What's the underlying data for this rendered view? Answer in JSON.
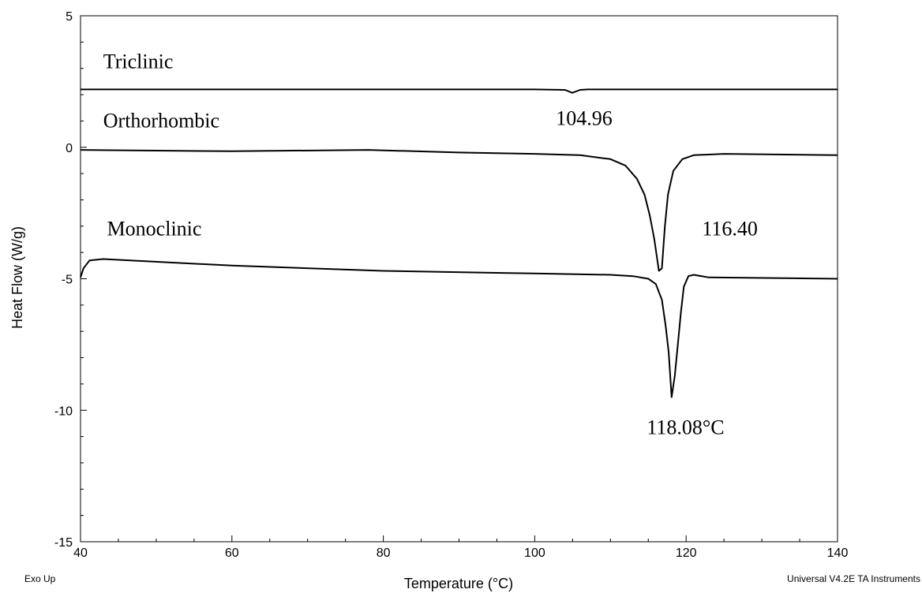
{
  "chart_data": {
    "type": "line",
    "xlabel": "Temperature (°C)",
    "ylabel": "Heat Flow (W/g)",
    "xlim": [
      40,
      140
    ],
    "ylim": [
      -15,
      5
    ],
    "x_ticks": [
      40,
      60,
      80,
      100,
      120,
      140
    ],
    "y_ticks": [
      5,
      0,
      -5,
      -10,
      -15
    ],
    "grid": false,
    "series": [
      {
        "name": "Triclinic",
        "color": "#000000",
        "points": [
          [
            40,
            2.2
          ],
          [
            80,
            2.2
          ],
          [
            100,
            2.2
          ],
          [
            104.0,
            2.18
          ],
          [
            104.96,
            2.07
          ],
          [
            106.0,
            2.18
          ],
          [
            107,
            2.2
          ],
          [
            120,
            2.2
          ],
          [
            140,
            2.2
          ]
        ]
      },
      {
        "name": "Orthorhombic",
        "color": "#000000",
        "points": [
          [
            40,
            -0.1
          ],
          [
            60,
            -0.15
          ],
          [
            78,
            -0.1
          ],
          [
            90,
            -0.2
          ],
          [
            100,
            -0.25
          ],
          [
            106,
            -0.3
          ],
          [
            110,
            -0.45
          ],
          [
            112,
            -0.7
          ],
          [
            113.5,
            -1.2
          ],
          [
            114.5,
            -1.8
          ],
          [
            115.2,
            -2.6
          ],
          [
            115.8,
            -3.5
          ],
          [
            116.4,
            -4.7
          ],
          [
            116.8,
            -4.6
          ],
          [
            117.2,
            -3.0
          ],
          [
            117.6,
            -1.8
          ],
          [
            118.3,
            -0.9
          ],
          [
            119.5,
            -0.45
          ],
          [
            121,
            -0.3
          ],
          [
            125,
            -0.25
          ],
          [
            140,
            -0.3
          ]
        ]
      },
      {
        "name": "Monoclinic",
        "color": "#000000",
        "points": [
          [
            40,
            -4.95
          ],
          [
            40.4,
            -4.6
          ],
          [
            41.2,
            -4.3
          ],
          [
            43,
            -4.25
          ],
          [
            60,
            -4.5
          ],
          [
            80,
            -4.7
          ],
          [
            100,
            -4.8
          ],
          [
            110,
            -4.85
          ],
          [
            113,
            -4.9
          ],
          [
            115,
            -5.0
          ],
          [
            116,
            -5.2
          ],
          [
            116.8,
            -5.8
          ],
          [
            117.3,
            -6.8
          ],
          [
            117.7,
            -7.8
          ],
          [
            118.08,
            -9.5
          ],
          [
            118.5,
            -8.7
          ],
          [
            118.9,
            -7.5
          ],
          [
            119.3,
            -6.3
          ],
          [
            119.7,
            -5.3
          ],
          [
            120.3,
            -4.9
          ],
          [
            121,
            -4.85
          ],
          [
            123,
            -4.95
          ],
          [
            140,
            -5.0
          ]
        ]
      }
    ],
    "annotations": [
      {
        "text": "Triclinic",
        "x": 43.0,
        "y": 3.0
      },
      {
        "text": "Orthorhombic",
        "x": 43.0,
        "y": 0.75
      },
      {
        "text": "Monoclinic",
        "x": 43.5,
        "y": -3.35
      },
      {
        "text": "104.96",
        "x": 102.8,
        "y": 0.85
      },
      {
        "text": "116.40",
        "x": 122.1,
        "y": -3.35
      },
      {
        "text": "118.08°C",
        "x": 114.8,
        "y": -10.9
      }
    ]
  },
  "footer": {
    "left": "Exo Up",
    "right": "Universal V4.2E TA Instruments"
  }
}
